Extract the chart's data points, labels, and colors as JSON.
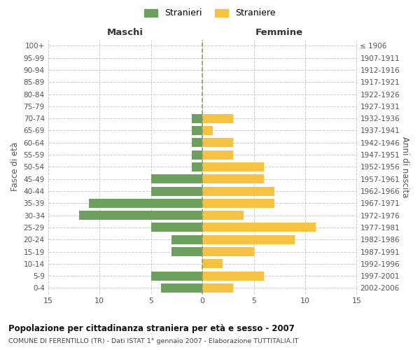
{
  "age_groups": [
    "100+",
    "95-99",
    "90-94",
    "85-89",
    "80-84",
    "75-79",
    "70-74",
    "65-69",
    "60-64",
    "55-59",
    "50-54",
    "45-49",
    "40-44",
    "35-39",
    "30-34",
    "25-29",
    "20-24",
    "15-19",
    "10-14",
    "5-9",
    "0-4"
  ],
  "birth_years": [
    "≤ 1906",
    "1907-1911",
    "1912-1916",
    "1917-1921",
    "1922-1926",
    "1927-1931",
    "1932-1936",
    "1937-1941",
    "1942-1946",
    "1947-1951",
    "1952-1956",
    "1957-1961",
    "1962-1966",
    "1967-1971",
    "1972-1976",
    "1977-1981",
    "1982-1986",
    "1987-1991",
    "1992-1996",
    "1997-2001",
    "2002-2006"
  ],
  "males": [
    0,
    0,
    0,
    0,
    0,
    0,
    1,
    1,
    1,
    1,
    1,
    5,
    5,
    11,
    12,
    5,
    3,
    3,
    0,
    5,
    4
  ],
  "females": [
    0,
    0,
    0,
    0,
    0,
    0,
    3,
    1,
    3,
    3,
    6,
    6,
    7,
    7,
    4,
    11,
    9,
    5,
    2,
    6,
    3
  ],
  "male_color": "#6d9f5e",
  "female_color": "#f5c242",
  "title": "Popolazione per cittadinanza straniera per età e sesso - 2007",
  "subtitle": "COMUNE DI FERENTILLO (TR) - Dati ISTAT 1° gennaio 2007 - Elaborazione TUTTITALIA.IT",
  "legend_male": "Stranieri",
  "legend_female": "Straniere",
  "xlabel_left": "Maschi",
  "xlabel_right": "Femmine",
  "ylabel_left": "Fasce di età",
  "ylabel_right": "Anni di nascita",
  "xlim": 15,
  "bg_color": "#ffffff",
  "grid_color": "#cccccc",
  "tick_color": "#555555"
}
